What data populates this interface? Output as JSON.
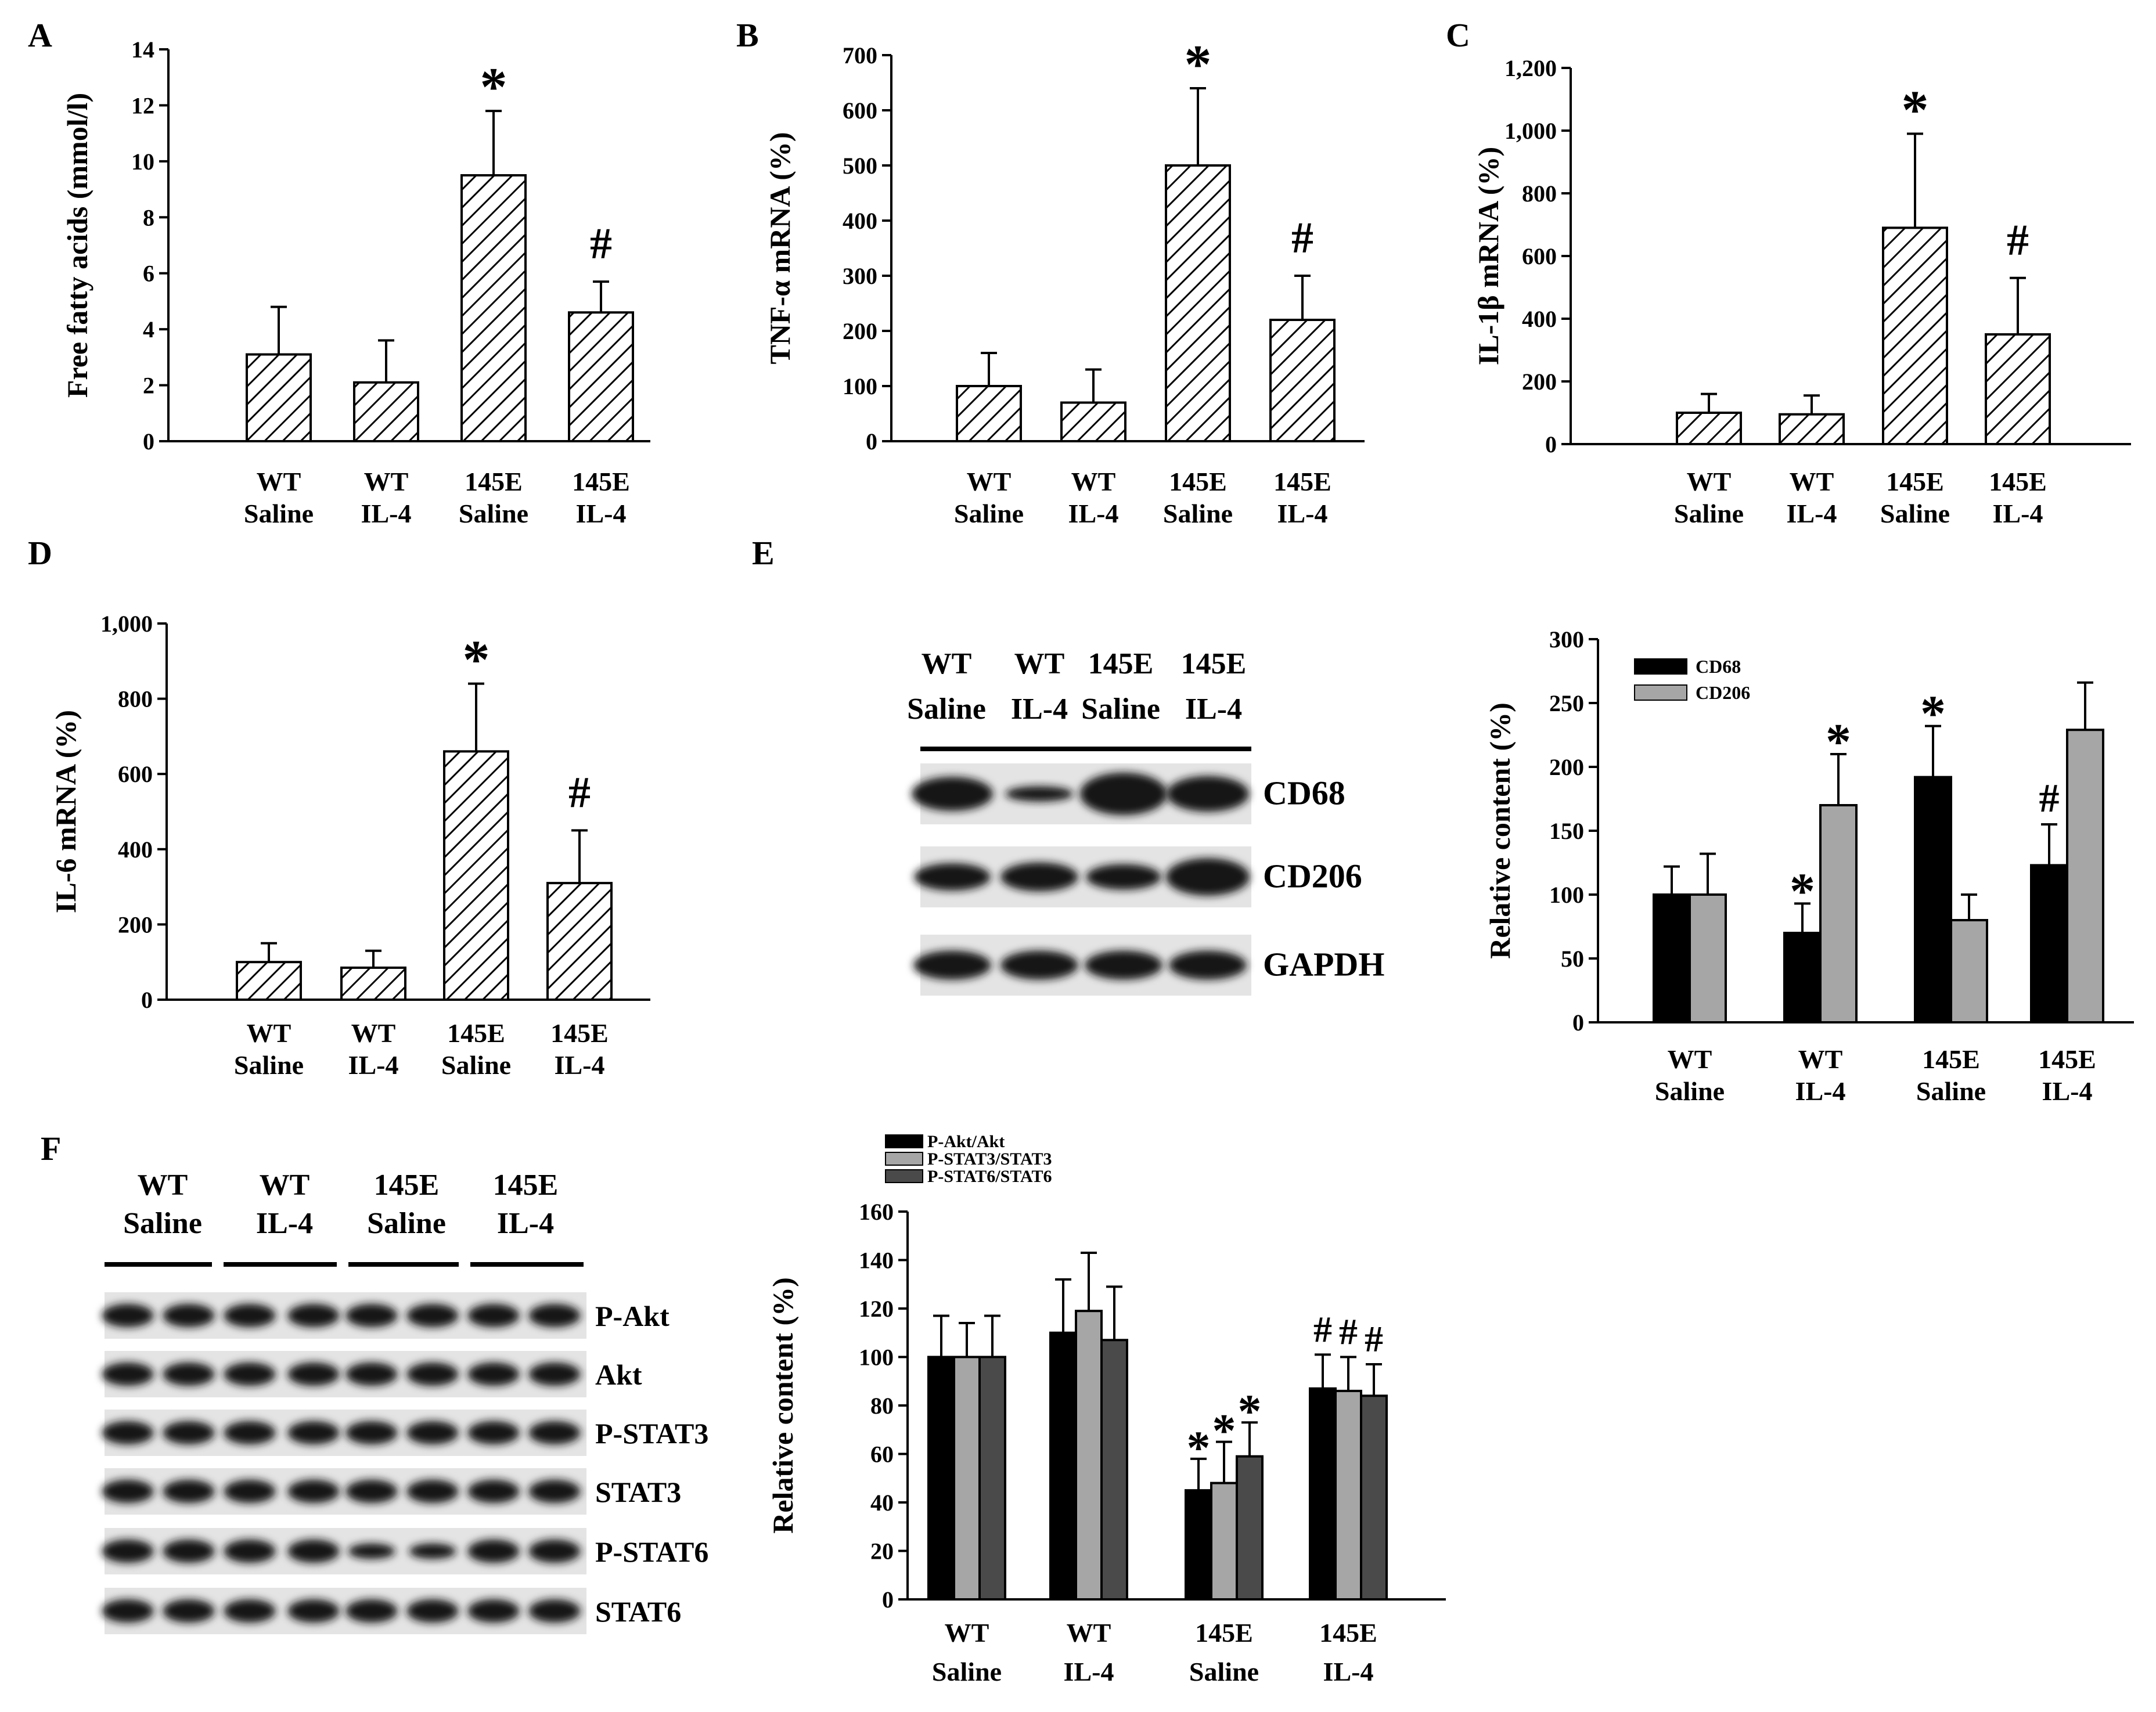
{
  "figure": {
    "panel_labels": [
      "A",
      "B",
      "C",
      "D",
      "E",
      "F"
    ],
    "colors": {
      "axis": "#000000",
      "hatch_bar_fill": "#ffffff",
      "cd68": "#000000",
      "cd206": "#a6a6a6",
      "pakt": "#000000",
      "pstat3": "#a6a6a6",
      "pstat6": "#4a4a4a",
      "blot_bg": "#e4e4e4",
      "band": "#151515"
    }
  },
  "chart_data": [
    {
      "panel": "A",
      "type": "bar",
      "pattern": "hatched",
      "ylabel": "Free fatty acids (mmol/l)",
      "ylim": [
        0,
        14
      ],
      "yticks": [
        0,
        2,
        4,
        6,
        8,
        10,
        12,
        14
      ],
      "ytick_labels": [
        "0",
        "2",
        "4",
        "6",
        "8",
        "10",
        "12",
        "14"
      ],
      "categories": [
        [
          "WT",
          "Saline"
        ],
        [
          "WT",
          "IL-4"
        ],
        [
          "145E",
          "Saline"
        ],
        [
          "145E",
          "IL-4"
        ]
      ],
      "values": [
        3.1,
        2.1,
        9.5,
        4.6
      ],
      "errors": [
        1.7,
        1.5,
        2.3,
        1.1
      ],
      "annotations": [
        "",
        "",
        "*",
        "#"
      ]
    },
    {
      "panel": "B",
      "type": "bar",
      "pattern": "hatched",
      "ylabel": "TNF-α mRNA (%)",
      "ylim": [
        0,
        700
      ],
      "yticks": [
        0,
        100,
        200,
        300,
        400,
        500,
        600,
        700
      ],
      "ytick_labels": [
        "0",
        "100",
        "200",
        "300",
        "400",
        "500",
        "600",
        "700"
      ],
      "categories": [
        [
          "WT",
          "Saline"
        ],
        [
          "WT",
          "IL-4"
        ],
        [
          "145E",
          "Saline"
        ],
        [
          "145E",
          "IL-4"
        ]
      ],
      "values": [
        100,
        70,
        500,
        220
      ],
      "errors": [
        60,
        60,
        140,
        80
      ],
      "annotations": [
        "",
        "",
        "*",
        "#"
      ]
    },
    {
      "panel": "C",
      "type": "bar",
      "pattern": "hatched",
      "ylabel": "IL-1β mRNA (%)",
      "ylim": [
        0,
        1200
      ],
      "yticks": [
        0,
        200,
        400,
        600,
        800,
        1000,
        1200
      ],
      "ytick_labels": [
        "0",
        "200",
        "400",
        "600",
        "800",
        "1,000",
        "1,200"
      ],
      "categories": [
        [
          "WT",
          "Saline"
        ],
        [
          "WT",
          "IL-4"
        ],
        [
          "145E",
          "Saline"
        ],
        [
          "145E",
          "IL-4"
        ]
      ],
      "values": [
        100,
        95,
        690,
        350
      ],
      "errors": [
        60,
        60,
        300,
        180
      ],
      "annotations": [
        "",
        "",
        "*",
        "#"
      ]
    },
    {
      "panel": "D",
      "type": "bar",
      "pattern": "hatched",
      "ylabel": "IL-6 mRNA (%)",
      "ylim": [
        0,
        1000
      ],
      "yticks": [
        0,
        200,
        400,
        600,
        800,
        1000
      ],
      "ytick_labels": [
        "0",
        "200",
        "400",
        "600",
        "800",
        "1,000"
      ],
      "categories": [
        [
          "WT",
          "Saline"
        ],
        [
          "WT",
          "IL-4"
        ],
        [
          "145E",
          "Saline"
        ],
        [
          "145E",
          "IL-4"
        ]
      ],
      "values": [
        100,
        85,
        660,
        310
      ],
      "errors": [
        50,
        45,
        180,
        140
      ],
      "annotations": [
        "",
        "",
        "*",
        "#"
      ]
    },
    {
      "panel": "E",
      "type": "bar",
      "ylabel": "Relative content (%)",
      "ylim": [
        0,
        300
      ],
      "yticks": [
        0,
        50,
        100,
        150,
        200,
        250,
        300
      ],
      "ytick_labels": [
        "0",
        "50",
        "100",
        "150",
        "200",
        "250",
        "300"
      ],
      "categories": [
        [
          "WT",
          "Saline"
        ],
        [
          "WT",
          "IL-4"
        ],
        [
          "145E",
          "Saline"
        ],
        [
          "145E",
          "IL-4"
        ]
      ],
      "series": [
        {
          "name": "CD68",
          "values": [
            100,
            70,
            192,
            123
          ],
          "errors": [
            22,
            23,
            40,
            32
          ],
          "annotations": [
            "",
            "*",
            "*",
            "#"
          ]
        },
        {
          "name": "CD206",
          "values": [
            100,
            170,
            80,
            229
          ],
          "errors": [
            32,
            40,
            20,
            37
          ],
          "annotations": [
            "",
            "*",
            "",
            ""
          ]
        }
      ],
      "legend": "top-left"
    },
    {
      "panel": "F",
      "type": "bar",
      "ylabel": "Relative content (%)",
      "ylim": [
        0,
        160
      ],
      "yticks": [
        0,
        20,
        40,
        60,
        80,
        100,
        120,
        140,
        160
      ],
      "ytick_labels": [
        "0",
        "20",
        "40",
        "60",
        "80",
        "100",
        "120",
        "140",
        "160"
      ],
      "categories": [
        [
          "WT",
          "Saline"
        ],
        [
          "WT",
          "IL-4"
        ],
        [
          "145E",
          "Saline"
        ],
        [
          "145E",
          "IL-4"
        ]
      ],
      "series": [
        {
          "name": "P-Akt/Akt",
          "values": [
            100,
            110,
            45,
            87
          ],
          "errors": [
            17,
            22,
            13,
            14
          ],
          "annotations": [
            "",
            "",
            "*",
            "#"
          ]
        },
        {
          "name": "P-STAT3/STAT3",
          "values": [
            100,
            119,
            48,
            86
          ],
          "errors": [
            14,
            24,
            17,
            14
          ],
          "annotations": [
            "",
            "",
            "*",
            "#"
          ]
        },
        {
          "name": "P-STAT6/STAT6",
          "values": [
            100,
            107,
            59,
            84
          ],
          "errors": [
            17,
            22,
            14,
            13
          ],
          "annotations": [
            "",
            "",
            "*",
            "#"
          ]
        }
      ],
      "legend": "top-left"
    }
  ],
  "blots": {
    "E": {
      "headers": [
        [
          "WT",
          "Saline"
        ],
        [
          "WT",
          "IL-4"
        ],
        [
          "145E",
          "Saline"
        ],
        [
          "145E",
          "IL-4"
        ]
      ],
      "rows": [
        "CD68",
        "CD206",
        "GAPDH"
      ]
    },
    "F": {
      "headers": [
        [
          "WT",
          "Saline"
        ],
        [
          "WT",
          "IL-4"
        ],
        [
          "145E",
          "Saline"
        ],
        [
          "145E",
          "IL-4"
        ]
      ],
      "rows": [
        "P-Akt",
        "Akt",
        "P-STAT3",
        "STAT3",
        "P-STAT6",
        "STAT6"
      ]
    }
  }
}
